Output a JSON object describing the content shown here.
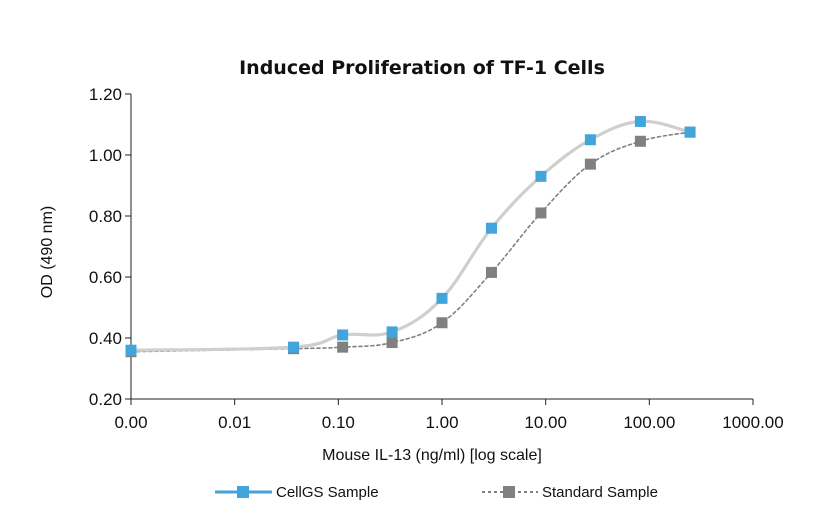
{
  "chart_data": {
    "type": "line",
    "title": "Induced Proliferation of TF-1 Cells",
    "xlabel": "Mouse IL-13 (ng/ml) [log scale]",
    "ylabel": "OD (490 nm)",
    "x_scale": "log",
    "x_tick_labels": [
      "0.00",
      "0.01",
      "0.10",
      "1.00",
      "10.00",
      "100.00",
      "1000.00"
    ],
    "x_tick_values": [
      0.001,
      0.01,
      0.1,
      1,
      10,
      100,
      1000
    ],
    "y_tick_labels": [
      "0.20",
      "0.40",
      "0.60",
      "0.80",
      "1.00",
      "1.20"
    ],
    "ylim": [
      0.2,
      1.2
    ],
    "grid": false,
    "legend_position": "bottom",
    "series": [
      {
        "name": "CellGS Sample",
        "marker_color": "#41a5dc",
        "line_color": "#cfcfcf",
        "line_style": "solid",
        "x": [
          0.001,
          0.037,
          0.11,
          0.33,
          1.0,
          3.0,
          9.0,
          27.0,
          82.0,
          247.0
        ],
        "y": [
          0.36,
          0.37,
          0.41,
          0.42,
          0.53,
          0.76,
          0.93,
          1.05,
          1.11,
          1.075
        ]
      },
      {
        "name": "Standard Sample",
        "marker_color": "#808080",
        "line_color": "#808080",
        "line_style": "dotted",
        "x": [
          0.001,
          0.037,
          0.11,
          0.33,
          1.0,
          3.0,
          9.0,
          27.0,
          82.0,
          247.0
        ],
        "y": [
          0.355,
          0.365,
          0.37,
          0.385,
          0.45,
          0.615,
          0.81,
          0.97,
          1.045,
          1.075
        ]
      }
    ],
    "legend": [
      {
        "label": "CellGS Sample",
        "line_color": "#41a5dc",
        "line_style": "solid",
        "marker_color": "#41a5dc"
      },
      {
        "label": "Standard Sample",
        "line_color": "#808080",
        "line_style": "dotted",
        "marker_color": "#808080"
      }
    ]
  }
}
